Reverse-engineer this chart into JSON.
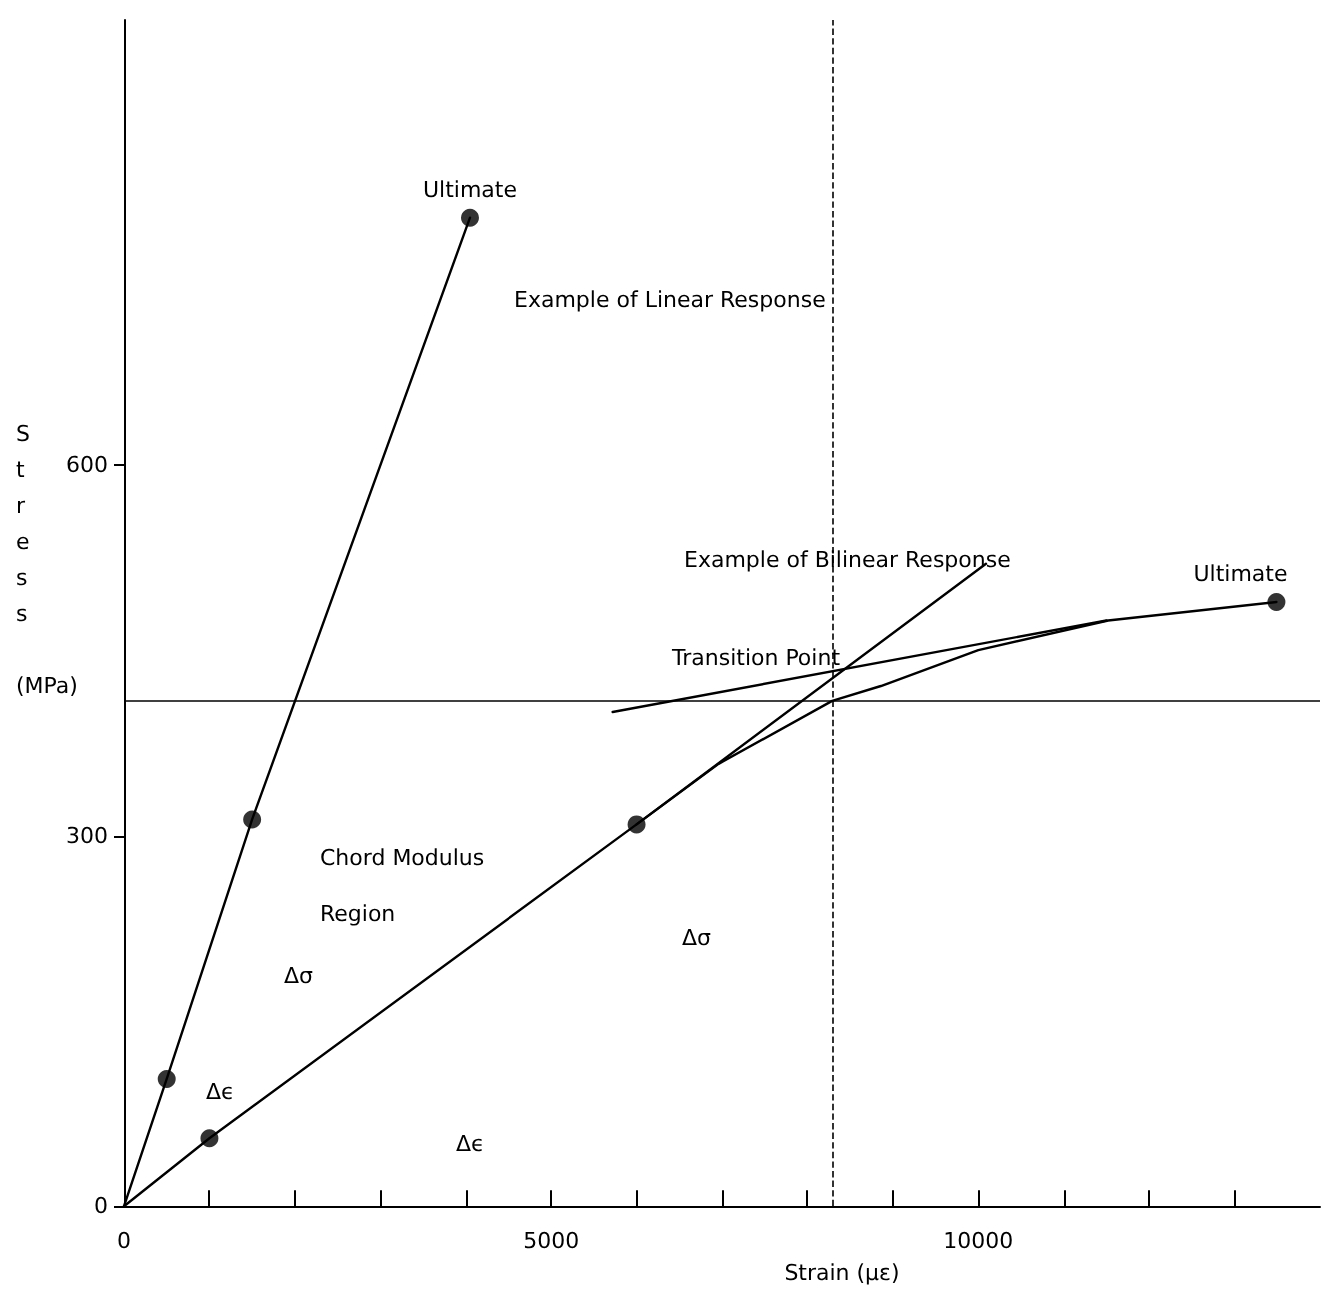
{
  "chart_data": {
    "type": "line",
    "xlabel": "Strain (με)",
    "ylabel": "Stress (MPa)",
    "xlim": [
      0,
      14000
    ],
    "ylim": [
      0,
      960
    ],
    "xticks": [
      0,
      {
        "value": 1000,
        "label": null
      },
      {
        "value": 2000,
        "label": null
      },
      {
        "value": 3000,
        "label": null
      },
      {
        "value": 4000,
        "label": null
      },
      5000,
      {
        "value": 6000,
        "label": null
      },
      {
        "value": 7000,
        "label": null
      },
      {
        "value": 8000,
        "label": null
      },
      {
        "value": 9000,
        "label": null
      },
      10000,
      {
        "value": 11000,
        "label": null
      },
      {
        "value": 12000,
        "label": null
      },
      {
        "value": 13000,
        "label": null
      }
    ],
    "yticks": [
      0,
      300,
      600
    ],
    "grid": false,
    "marker": "none",
    "line_style": "solid",
    "series": [
      {
        "color": "#000000",
        "x": [
          0,
          500,
          1500,
          4050
        ],
        "values": [
          0,
          103,
          313,
          800
        ]
      },
      {
        "color": "#000000",
        "x": [
          0,
          1000,
          6000,
          6960,
          8290,
          8860,
          10000,
          11520,
          13490
        ],
        "values": [
          0,
          55,
          309,
          358,
          409,
          421,
          450,
          474,
          489
        ]
      },
      {
        "color": "#000000",
        "x": [
          6000,
          10090
        ],
        "values": [
          309,
          520
        ]
      },
      {
        "color": "#000000",
        "x": [
          5720,
          11500
        ],
        "values": [
          400,
          474
        ]
      },
      {
        "type": "scatter",
        "color": "#000000",
        "marker": "circle",
        "x": [
          500,
          1500,
          1000,
          6000
        ],
        "values": [
          103,
          313,
          55,
          309
        ]
      },
      {
        "type": "scatter",
        "color": "#000000",
        "marker": "circle",
        "x": [
          4050,
          13490
        ],
        "values": [
          800,
          489
        ]
      }
    ],
    "ref_lines": [
      {
        "axis": "y",
        "value": 409,
        "line_style": "solid",
        "color": "#000000"
      },
      {
        "axis": "x",
        "value": 8290,
        "line_style": "dashed",
        "color": "#000000"
      }
    ],
    "annotations": [
      {
        "text": "Ultimate",
        "x": 4050,
        "y": 800
      },
      {
        "text": "Ultimate",
        "x": 13490,
        "y": 489
      },
      "Transition Point",
      "Δσ",
      "Δϵ",
      "Δσ",
      "Δϵ",
      "Example of Linear Response",
      "Example of Bilinear Response",
      "Chord Modulus Region"
    ]
  }
}
